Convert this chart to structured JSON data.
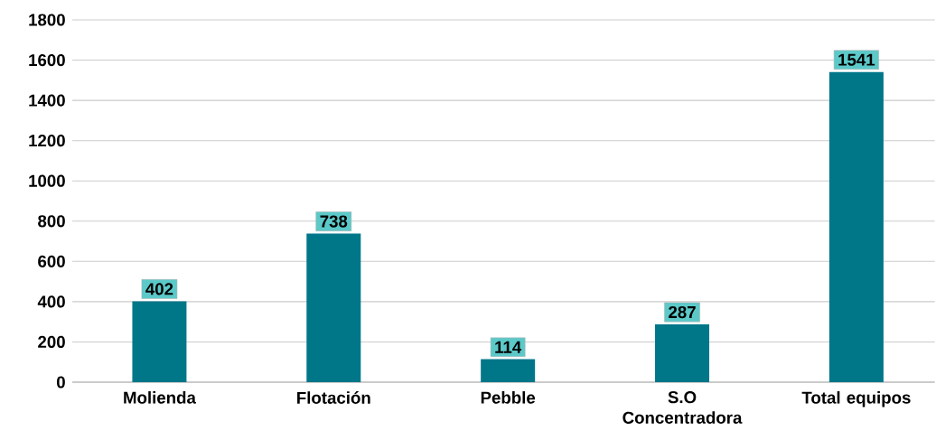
{
  "chart_data": {
    "type": "bar",
    "categories": [
      "Molienda",
      "Flotación",
      "Pebble",
      "S.O Concentradora",
      "Total equipos"
    ],
    "values": [
      402,
      738,
      114,
      287,
      1541
    ],
    "color": "#007789",
    "ylim": [
      0,
      1800
    ],
    "yticks": [
      0,
      200,
      400,
      600,
      800,
      1000,
      1200,
      1400,
      1600,
      1800
    ],
    "grid": "y",
    "data_labels": true
  }
}
